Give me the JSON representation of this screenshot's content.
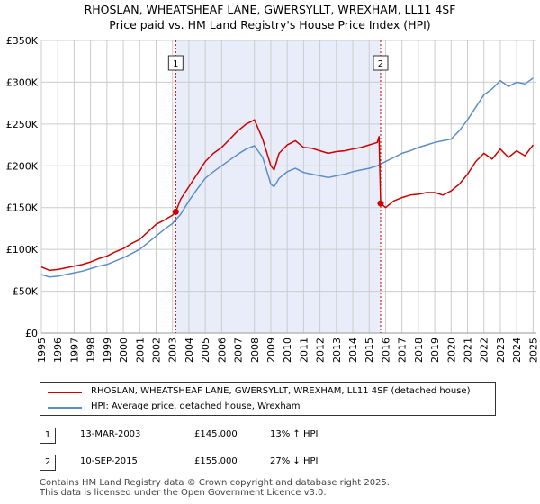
{
  "title_line1": "RHOSLAN, WHEATSHEAF LANE, GWERSYLLT, WREXHAM, LL11 4SF",
  "title_line2": "Price paid vs. HM Land Registry's House Price Index (HPI)",
  "chart_data": {
    "type": "line",
    "title": "RHOSLAN, WHEATSHEAF LANE, GWERSYLLT, WREXHAM, LL11 4SF — Price paid vs. HM Land Registry's House Price Index (HPI)",
    "xlabel": "",
    "ylabel": "",
    "xlim": [
      1995,
      2025.2
    ],
    "ylim": [
      0,
      350000
    ],
    "yticks": [
      {
        "value": 0,
        "label": "£0"
      },
      {
        "value": 50000,
        "label": "£50K"
      },
      {
        "value": 100000,
        "label": "£100K"
      },
      {
        "value": 150000,
        "label": "£150K"
      },
      {
        "value": 200000,
        "label": "£200K"
      },
      {
        "value": 250000,
        "label": "£250K"
      },
      {
        "value": 300000,
        "label": "£300K"
      },
      {
        "value": 350000,
        "label": "£350K"
      }
    ],
    "xticks": [
      "1995",
      "1996",
      "1997",
      "1998",
      "1999",
      "2000",
      "2001",
      "2002",
      "2003",
      "2004",
      "2005",
      "2006",
      "2007",
      "2008",
      "2009",
      "2010",
      "2011",
      "2012",
      "2013",
      "2014",
      "2015",
      "2016",
      "2017",
      "2018",
      "2019",
      "2020",
      "2021",
      "2022",
      "2023",
      "2024",
      "2025"
    ],
    "grid": true,
    "shaded_region": [
      2003.2,
      2015.7
    ],
    "markers": [
      {
        "label": "1",
        "x": 2003.2,
        "y": 145000
      },
      {
        "label": "2",
        "x": 2015.7,
        "y": 155000
      }
    ],
    "series": [
      {
        "name": "RHOSLAN, WHEATSHEAF LANE, GWERSYLLT, WREXHAM, LL11 4SF (detached house)",
        "color": "#cc0000",
        "x": [
          1995,
          1995.5,
          1996,
          1996.5,
          1997,
          1997.5,
          1998,
          1998.5,
          1999,
          1999.5,
          2000,
          2000.5,
          2001,
          2001.5,
          2002,
          2002.5,
          2003,
          2003.2,
          2003.5,
          2004,
          2004.5,
          2005,
          2005.5,
          2006,
          2006.5,
          2007,
          2007.5,
          2008,
          2008.5,
          2009,
          2009.2,
          2009.5,
          2010,
          2010.5,
          2011,
          2011.5,
          2012,
          2012.5,
          2013,
          2013.5,
          2014,
          2014.5,
          2015,
          2015.5,
          2015.6,
          2015.7,
          2016,
          2016.5,
          2017,
          2017.5,
          2018,
          2018.5,
          2019,
          2019.5,
          2020,
          2020.5,
          2021,
          2021.5,
          2022,
          2022.5,
          2023,
          2023.5,
          2024,
          2024.5,
          2025
        ],
        "values": [
          79000,
          75000,
          76000,
          78000,
          80000,
          82000,
          85000,
          89000,
          92000,
          97000,
          101000,
          107000,
          112000,
          121000,
          130000,
          135000,
          141000,
          145000,
          160000,
          175000,
          190000,
          205000,
          215000,
          222000,
          232000,
          242000,
          250000,
          255000,
          232000,
          200000,
          195000,
          215000,
          225000,
          230000,
          222000,
          221000,
          218000,
          215000,
          217000,
          218000,
          220000,
          222000,
          225000,
          228000,
          235000,
          155000,
          150000,
          158000,
          162000,
          165000,
          166000,
          168000,
          168000,
          165000,
          170000,
          178000,
          190000,
          205000,
          215000,
          208000,
          220000,
          210000,
          218000,
          212000,
          225000
        ]
      },
      {
        "name": "HPI: Average price, detached house, Wrexham",
        "color": "#5b8ec8",
        "x": [
          1995,
          1995.5,
          1996,
          1996.5,
          1997,
          1997.5,
          1998,
          1998.5,
          1999,
          1999.5,
          2000,
          2000.5,
          2001,
          2001.5,
          2002,
          2002.5,
          2003,
          2003.5,
          2004,
          2004.5,
          2005,
          2005.5,
          2006,
          2006.5,
          2007,
          2007.5,
          2008,
          2008.5,
          2009,
          2009.2,
          2009.5,
          2010,
          2010.5,
          2011,
          2011.5,
          2012,
          2012.5,
          2013,
          2013.5,
          2014,
          2014.5,
          2015,
          2015.5,
          2016,
          2016.5,
          2017,
          2017.5,
          2018,
          2018.5,
          2019,
          2019.5,
          2020,
          2020.5,
          2021,
          2021.5,
          2022,
          2022.5,
          2023,
          2023.5,
          2024,
          2024.5,
          2025
        ],
        "values": [
          70000,
          67000,
          68000,
          70000,
          72000,
          74000,
          77000,
          80000,
          82000,
          86000,
          90000,
          95000,
          100000,
          108000,
          116000,
          124000,
          131000,
          142000,
          158000,
          172000,
          185000,
          193000,
          200000,
          207000,
          214000,
          220000,
          224000,
          210000,
          178000,
          175000,
          185000,
          193000,
          197000,
          192000,
          190000,
          188000,
          186000,
          188000,
          190000,
          193000,
          195000,
          197000,
          200000,
          205000,
          210000,
          215000,
          218000,
          222000,
          225000,
          228000,
          230000,
          232000,
          242000,
          255000,
          270000,
          285000,
          292000,
          302000,
          295000,
          300000,
          298000,
          305000
        ]
      }
    ]
  },
  "legend": {
    "property_label": "RHOSLAN, WHEATSHEAF LANE, GWERSYLLT, WREXHAM, LL11 4SF (detached house)",
    "hpi_label": "HPI: Average price, detached house, Wrexham",
    "property_color": "#cc0000",
    "hpi_color": "#5b8ec8"
  },
  "transactions": [
    {
      "num": "1",
      "date": "13-MAR-2003",
      "price": "£145,000",
      "hpi": "13% ↑ HPI"
    },
    {
      "num": "2",
      "date": "10-SEP-2015",
      "price": "£155,000",
      "hpi": "27% ↓ HPI"
    }
  ],
  "footer_line1": "Contains HM Land Registry data © Crown copyright and database right 2025.",
  "footer_line2": "This data is licensed under the Open Government Licence v3.0."
}
